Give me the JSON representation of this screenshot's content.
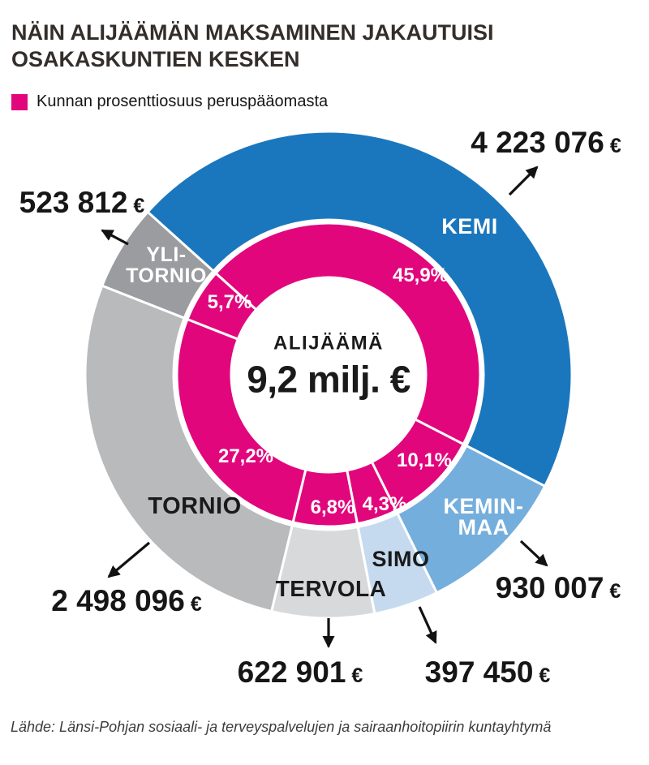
{
  "header": {
    "title_lines": [
      "NÄIN ALIJÄÄMÄN MAKSAMINEN JAKAUTUISI",
      "OSAKASKUNTIEN KESKEN"
    ]
  },
  "footer": {
    "source": "Lähde: Länsi-Pohjan sosiaali- ja terveyspalvelujen ja sairaanhoitopiirin kuntayhtymä"
  },
  "chart_data": {
    "type": "donut",
    "title": "NÄIN ALIJÄÄMÄN MAKSAMINEN JAKAUTUISI OSAKASKUNTIEN KESKEN",
    "legend": {
      "label": "Kunnan prosenttiosuus peruspääomasta",
      "swatch_color": "#E2067D"
    },
    "center": {
      "label": "ALIJÄÄMÄ",
      "value": "9,2 milj. €"
    },
    "direction": "clockwise",
    "start_angle_deg": -48,
    "inner_ring_color": "#E2067D",
    "currency_symbol": "€",
    "segments": [
      {
        "id": "kemi",
        "name": "KEMI",
        "percent": 45.9,
        "percent_label": "45,9%",
        "value_eur": 4223076,
        "value_label": "4 223 076",
        "color": "#1B77BD",
        "name_color": "#FFFFFF"
      },
      {
        "id": "keminmaa",
        "name": "KEMIN-\nMAA",
        "percent": 10.1,
        "percent_label": "10,1%",
        "value_eur": 930007,
        "value_label": "930 007",
        "color": "#74AEDC",
        "name_color": "#FFFFFF"
      },
      {
        "id": "simo",
        "name": "SIMO",
        "percent": 4.3,
        "percent_label": "4,3%",
        "value_eur": 397450,
        "value_label": "397 450",
        "color": "#C5DAEF",
        "name_color": "#1A1A1A"
      },
      {
        "id": "tervola",
        "name": "TERVOLA",
        "percent": 6.8,
        "percent_label": "6,8%",
        "value_eur": 622901,
        "value_label": "622 901",
        "color": "#D8D9DB",
        "name_color": "#1A1A1A"
      },
      {
        "id": "tornio",
        "name": "TORNIO",
        "percent": 27.2,
        "percent_label": "27,2%",
        "value_eur": 2498096,
        "value_label": "2 498 096",
        "color": "#B9BABC",
        "name_color": "#1A1A1A"
      },
      {
        "id": "ylitornio",
        "name": "YLI-\nTORNIO",
        "percent": 5.7,
        "percent_label": "5,7%",
        "value_eur": 523812,
        "value_label": "523 812",
        "color": "#9A9C9F",
        "name_color": "#FFFFFF"
      }
    ]
  }
}
